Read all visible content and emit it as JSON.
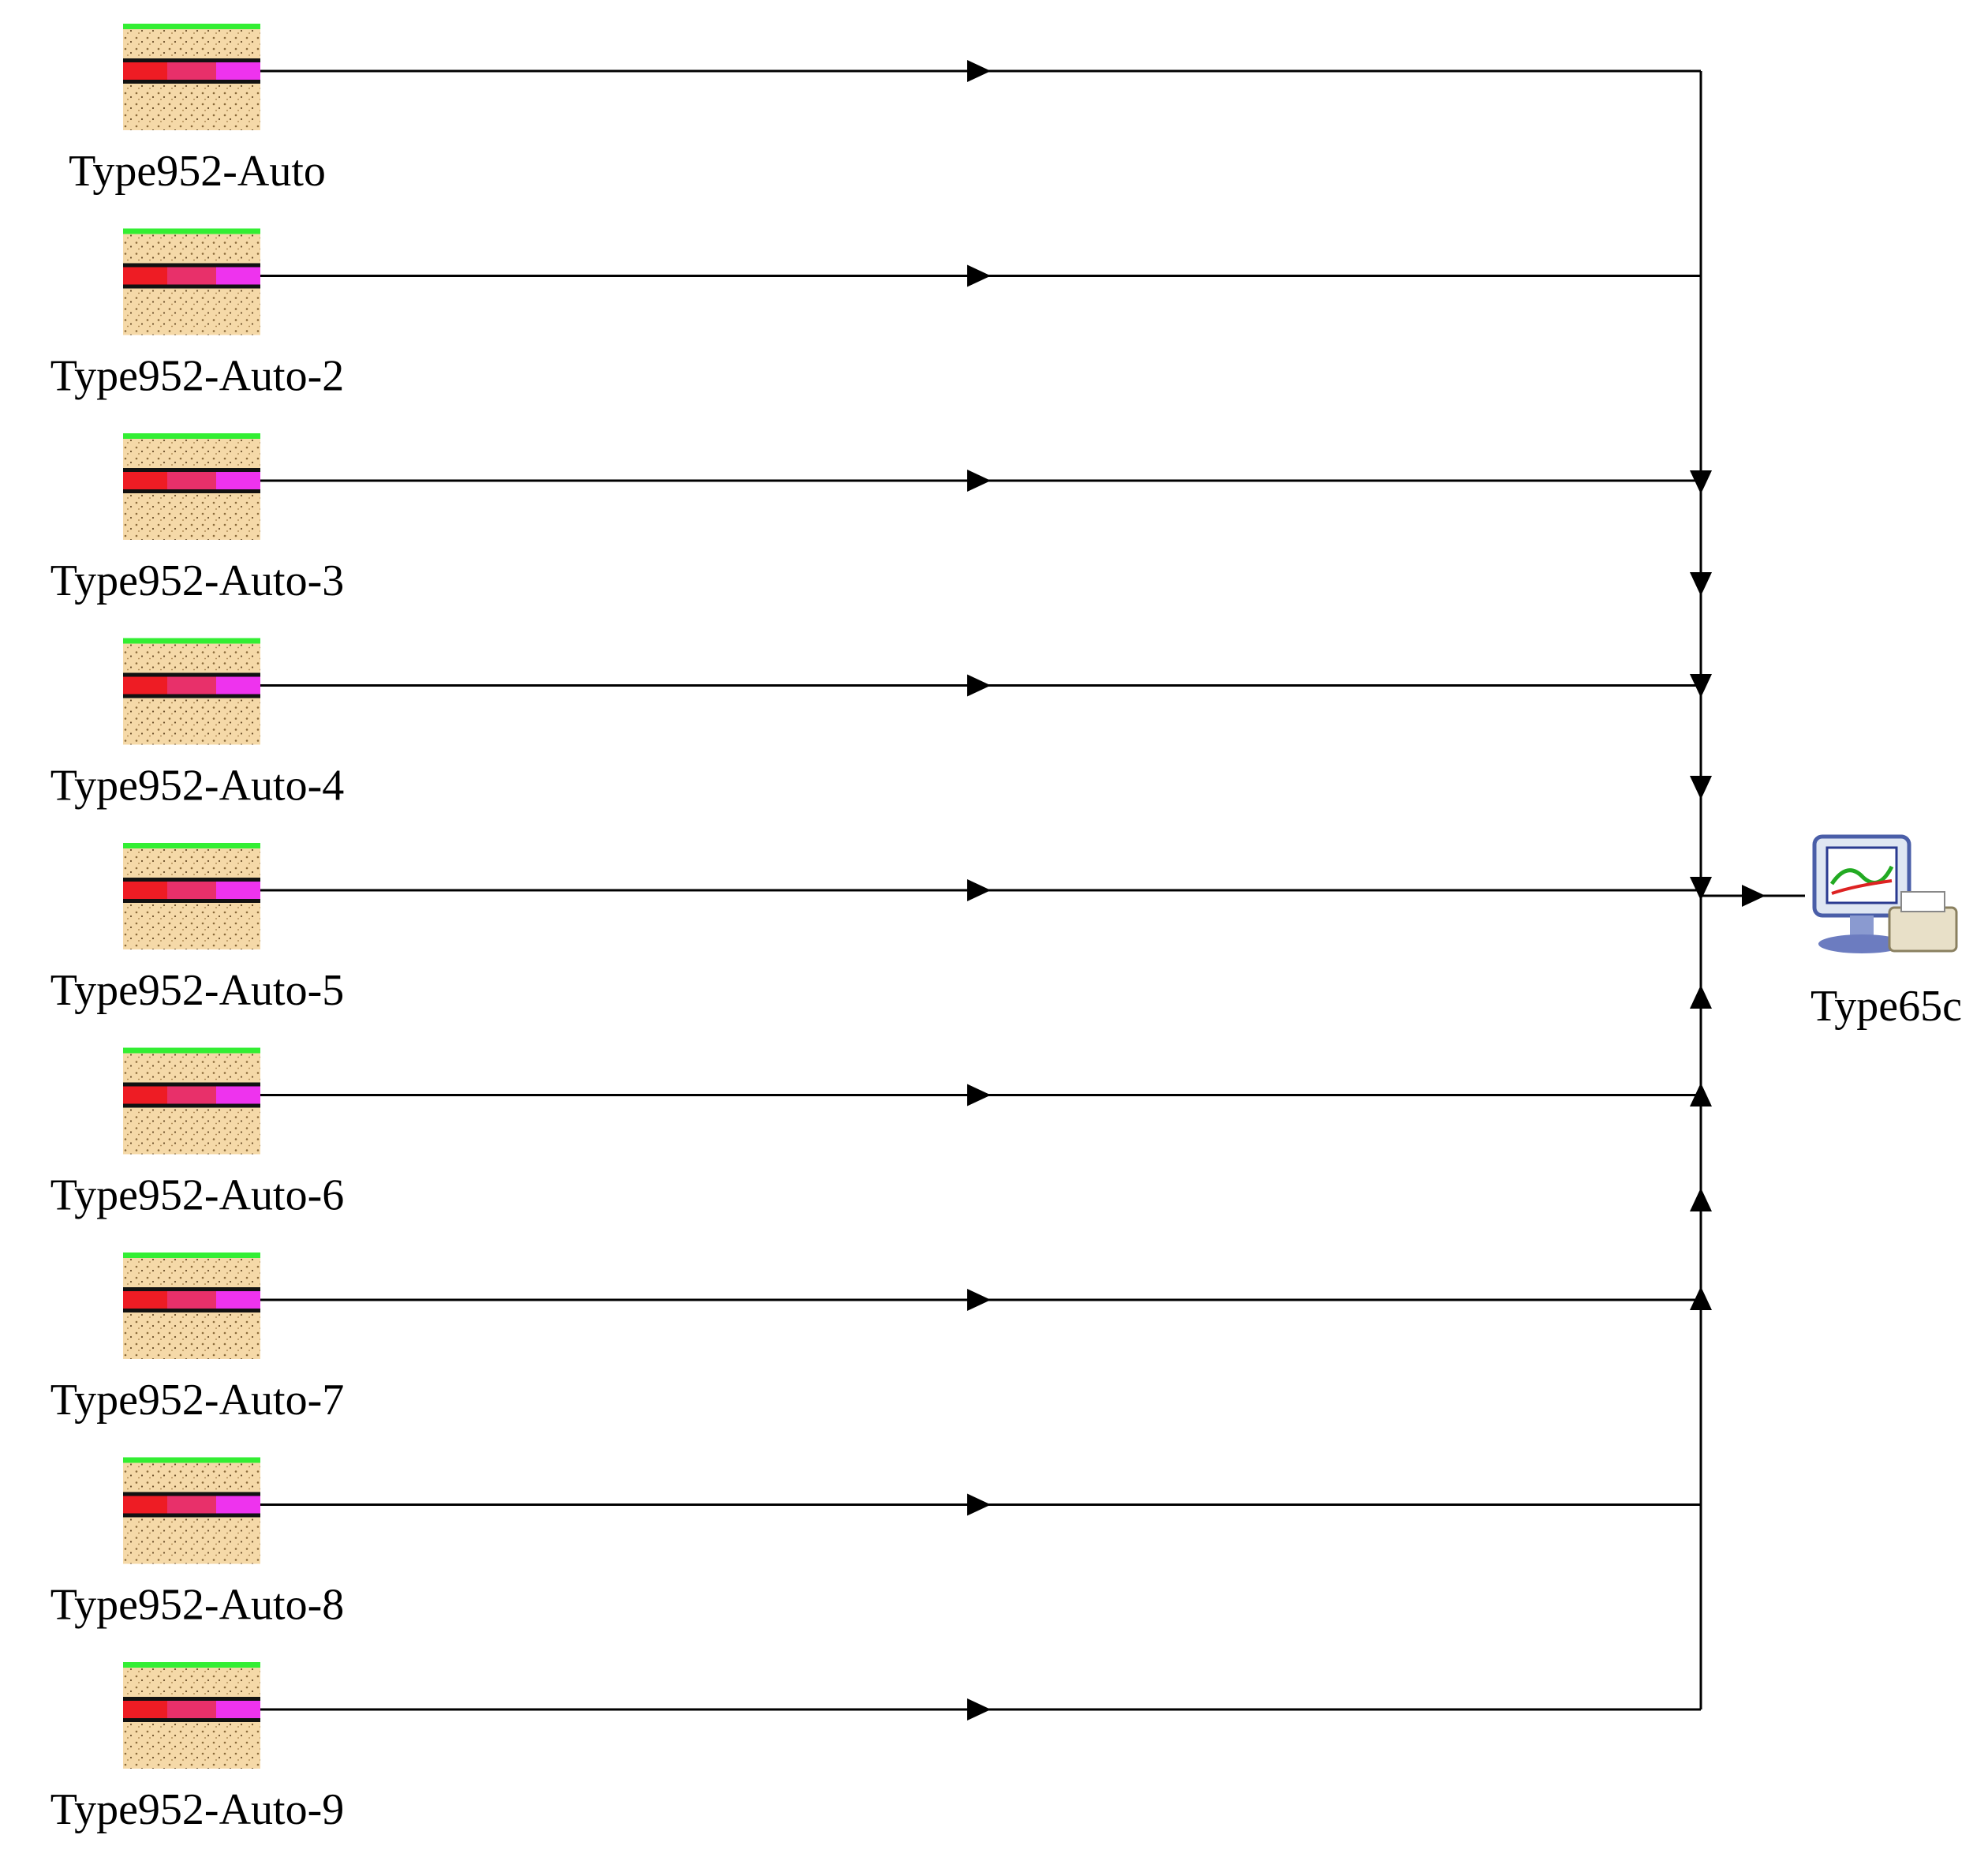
{
  "nodes": [
    {
      "label": "Type952-Auto"
    },
    {
      "label": "Type952-Auto-2"
    },
    {
      "label": "Type952-Auto-3"
    },
    {
      "label": "Type952-Auto-4"
    },
    {
      "label": "Type952-Auto-5"
    },
    {
      "label": "Type952-Auto-6"
    },
    {
      "label": "Type952-Auto-7"
    },
    {
      "label": "Type952-Auto-8"
    },
    {
      "label": "Type952-Auto-9"
    }
  ],
  "output": {
    "label": "Type65c"
  }
}
